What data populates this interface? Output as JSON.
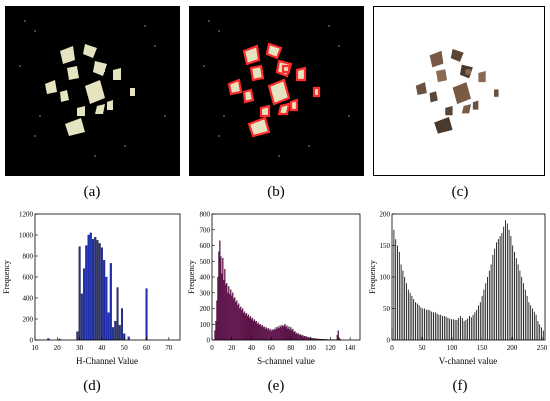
{
  "figure": {
    "panels": [
      {
        "id": "a",
        "caption": "(a)",
        "kind": "binary-mask-fragments"
      },
      {
        "id": "b",
        "caption": "(b)",
        "kind": "outlined-fragments"
      },
      {
        "id": "c",
        "caption": "(c)",
        "kind": "extracted-fragments"
      },
      {
        "id": "d",
        "caption": "(d)",
        "kind": "histogram"
      },
      {
        "id": "e",
        "caption": "(e)",
        "kind": "histogram"
      },
      {
        "id": "f",
        "caption": "(f)",
        "kind": "histogram"
      }
    ],
    "colors": {
      "h": "#1f2fb0",
      "s": "#8b1e6e",
      "v": "#000000",
      "outline": "#ff2a2a",
      "fragment": "#e6e3c0"
    }
  },
  "chart_data": [
    {
      "type": "bar",
      "panel": "d",
      "xlabel": "H-Channel Value",
      "ylabel": "Frequency",
      "xlim": [
        10,
        75
      ],
      "ylim": [
        0,
        1200
      ],
      "xticks": [
        10,
        20,
        30,
        40,
        50,
        60,
        70
      ],
      "yticks": [
        0,
        200,
        400,
        600,
        800,
        1000,
        1200
      ],
      "bar_width": 0.8,
      "x": [
        16,
        21,
        29,
        30,
        31,
        32,
        33,
        34,
        35,
        36,
        37,
        38,
        39,
        40,
        41,
        42,
        43,
        44,
        45,
        46,
        47,
        48,
        49,
        50,
        52,
        60
      ],
      "values": [
        15,
        10,
        80,
        890,
        440,
        680,
        900,
        1000,
        1020,
        960,
        980,
        950,
        920,
        880,
        760,
        600,
        260,
        730,
        120,
        180,
        500,
        140,
        300,
        60,
        30,
        490
      ]
    },
    {
      "type": "bar",
      "panel": "e",
      "xlabel": "S-channel value",
      "ylabel": "Frequency",
      "xlim": [
        0,
        150
      ],
      "ylim": [
        0,
        800
      ],
      "xticks": [
        0,
        20,
        40,
        60,
        80,
        100,
        120,
        140
      ],
      "yticks": [
        0,
        100,
        200,
        300,
        400,
        500,
        600,
        700,
        800
      ],
      "bar_width": 1,
      "x": [
        3,
        4,
        5,
        6,
        7,
        8,
        9,
        10,
        11,
        12,
        13,
        14,
        15,
        16,
        17,
        18,
        19,
        20,
        21,
        22,
        23,
        24,
        25,
        26,
        27,
        28,
        29,
        30,
        31,
        32,
        33,
        34,
        35,
        36,
        37,
        38,
        39,
        40,
        41,
        42,
        43,
        44,
        45,
        46,
        47,
        48,
        49,
        50,
        51,
        52,
        53,
        54,
        55,
        56,
        57,
        58,
        59,
        60,
        61,
        62,
        63,
        64,
        65,
        66,
        67,
        68,
        69,
        70,
        71,
        72,
        73,
        74,
        75,
        76,
        77,
        78,
        79,
        80,
        81,
        82,
        83,
        84,
        85,
        86,
        87,
        88,
        89,
        90,
        91,
        92,
        93,
        94,
        95,
        96,
        97,
        98,
        99,
        100,
        101,
        102,
        103,
        104,
        105,
        106,
        107,
        108,
        109,
        110,
        111,
        112,
        113,
        114,
        115,
        116,
        117,
        118,
        119,
        120,
        121,
        122,
        123,
        124,
        125,
        126,
        127,
        128,
        129,
        130
      ],
      "values": [
        60,
        120,
        250,
        400,
        560,
        630,
        530,
        420,
        520,
        380,
        450,
        350,
        360,
        300,
        340,
        290,
        320,
        280,
        300,
        260,
        270,
        240,
        250,
        220,
        230,
        200,
        210,
        190,
        200,
        170,
        180,
        160,
        170,
        150,
        160,
        140,
        150,
        130,
        140,
        120,
        130,
        115,
        120,
        100,
        110,
        95,
        100,
        85,
        95,
        80,
        85,
        70,
        80,
        65,
        75,
        60,
        70,
        55,
        65,
        60,
        70,
        65,
        80,
        70,
        85,
        75,
        90,
        80,
        95,
        85,
        90,
        100,
        80,
        90,
        70,
        85,
        65,
        80,
        60,
        70,
        50,
        55,
        40,
        45,
        35,
        40,
        30,
        35,
        25,
        30,
        20,
        25,
        20,
        22,
        15,
        18,
        12,
        15,
        10,
        12,
        8,
        10,
        8,
        9,
        6,
        7,
        5,
        6,
        5,
        5,
        4,
        4,
        3,
        4,
        3,
        3,
        2,
        3,
        2,
        2,
        3,
        2,
        2,
        2,
        30,
        60,
        15,
        5
      ]
    },
    {
      "type": "bar",
      "panel": "f",
      "xlabel": "V-channel value",
      "ylabel": "Frequency",
      "xlim": [
        0,
        255
      ],
      "ylim": [
        0,
        200
      ],
      "xticks": [
        0,
        50,
        100,
        150,
        200,
        250
      ],
      "yticks": [
        0,
        50,
        100,
        150,
        200
      ],
      "bar_width": 1,
      "x": [
        0,
        3,
        6,
        9,
        12,
        15,
        18,
        21,
        24,
        27,
        30,
        33,
        36,
        39,
        42,
        45,
        48,
        51,
        54,
        57,
        60,
        63,
        66,
        69,
        72,
        75,
        78,
        81,
        84,
        87,
        90,
        93,
        96,
        99,
        102,
        105,
        108,
        111,
        114,
        117,
        120,
        123,
        126,
        129,
        132,
        135,
        138,
        141,
        144,
        147,
        150,
        153,
        156,
        159,
        162,
        165,
        168,
        171,
        174,
        177,
        180,
        183,
        186,
        189,
        192,
        195,
        198,
        201,
        204,
        207,
        210,
        213,
        216,
        219,
        222,
        225,
        228,
        231,
        234,
        237,
        240,
        243,
        246,
        249,
        252
      ],
      "values": [
        20,
        175,
        160,
        150,
        140,
        120,
        110,
        100,
        90,
        80,
        75,
        70,
        65,
        60,
        58,
        55,
        52,
        50,
        50,
        48,
        48,
        47,
        45,
        44,
        44,
        42,
        40,
        40,
        38,
        38,
        37,
        35,
        34,
        33,
        33,
        32,
        32,
        35,
        38,
        35,
        30,
        32,
        34,
        38,
        36,
        40,
        44,
        48,
        55,
        60,
        70,
        80,
        90,
        100,
        110,
        120,
        135,
        145,
        155,
        160,
        165,
        170,
        180,
        190,
        185,
        175,
        165,
        150,
        140,
        130,
        120,
        110,
        100,
        90,
        80,
        70,
        60,
        55,
        50,
        45,
        40,
        30,
        25,
        20,
        15
      ]
    }
  ]
}
